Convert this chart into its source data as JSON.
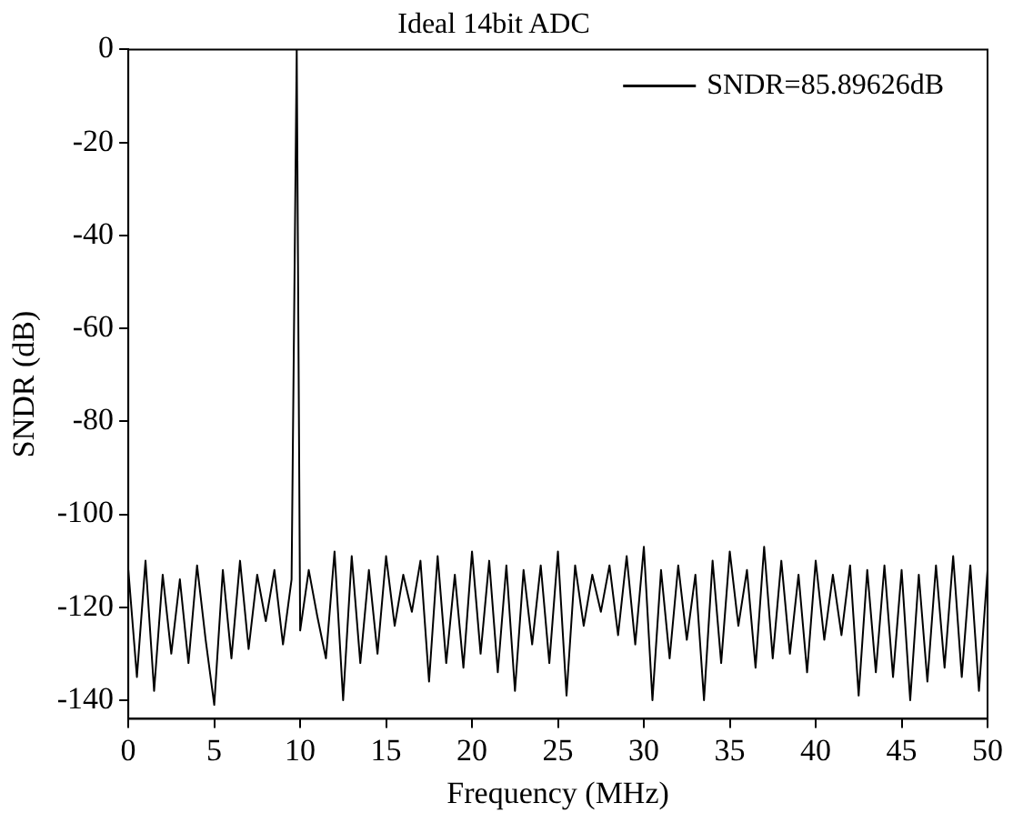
{
  "chart_data": {
    "type": "line",
    "title": "Ideal 14bit ADC",
    "xlabel": "Frequency (MHz)",
    "ylabel": "SNDR (dB)",
    "xlim": [
      0,
      50
    ],
    "xticks": [
      0,
      5,
      10,
      15,
      20,
      25,
      30,
      35,
      40,
      45,
      50
    ],
    "ylim": [
      -144,
      0
    ],
    "yticks": [
      -140,
      -120,
      -100,
      -80,
      -60,
      -40,
      -20,
      0
    ],
    "grid": false,
    "legend": "top right",
    "marker": "none",
    "line_style": "solid",
    "series": [
      {
        "name": "SNDR=85.89626dB",
        "color": "#000000",
        "x": [
          0,
          0.5,
          1,
          1.5,
          2,
          2.5,
          3,
          3.5,
          4,
          4.5,
          5,
          5.5,
          6,
          6.5,
          7,
          7.5,
          8,
          8.5,
          9,
          9.5,
          9.8,
          10,
          10.5,
          11,
          11.5,
          12,
          12.5,
          13,
          13.5,
          14,
          14.5,
          15,
          15.5,
          16,
          16.5,
          17,
          17.5,
          18,
          18.5,
          19,
          19.5,
          20,
          20.5,
          21,
          21.5,
          22,
          22.5,
          23,
          23.5,
          24,
          24.5,
          25,
          25.5,
          26,
          26.5,
          27,
          27.5,
          28,
          28.5,
          29,
          29.5,
          30,
          30.5,
          31,
          31.5,
          32,
          32.5,
          33,
          33.5,
          34,
          34.5,
          35,
          35.5,
          36,
          36.5,
          37,
          37.5,
          38,
          38.5,
          39,
          39.5,
          40,
          40.5,
          41,
          41.5,
          42,
          42.5,
          43,
          43.5,
          44,
          44.5,
          45,
          45.5,
          46,
          46.5,
          47,
          47.5,
          48,
          48.5,
          49,
          49.5,
          50
        ],
        "values": [
          -112,
          -135,
          -110,
          -138,
          -113,
          -130,
          -114,
          -132,
          -111,
          -127,
          -141,
          -112,
          -131,
          -110,
          -129,
          -113,
          -123,
          -112,
          -128,
          -114,
          0,
          -125,
          -112,
          -122,
          -131,
          -108,
          -140,
          -109,
          -132,
          -112,
          -130,
          -109,
          -124,
          -113,
          -121,
          -110,
          -136,
          -109,
          -132,
          -113,
          -133,
          -108,
          -130,
          -110,
          -134,
          -111,
          -138,
          -112,
          -128,
          -111,
          -132,
          -108,
          -139,
          -111,
          -124,
          -113,
          -121,
          -111,
          -126,
          -109,
          -128,
          -107,
          -140,
          -112,
          -131,
          -111,
          -127,
          -113,
          -140,
          -110,
          -132,
          -108,
          -124,
          -112,
          -133,
          -107,
          -131,
          -110,
          -130,
          -113,
          -134,
          -110,
          -127,
          -113,
          -126,
          -111,
          -139,
          -112,
          -134,
          -111,
          -135,
          -112,
          -140,
          -113,
          -136,
          -111,
          -133,
          -109,
          -135,
          -111,
          -138,
          -112
        ]
      }
    ]
  }
}
